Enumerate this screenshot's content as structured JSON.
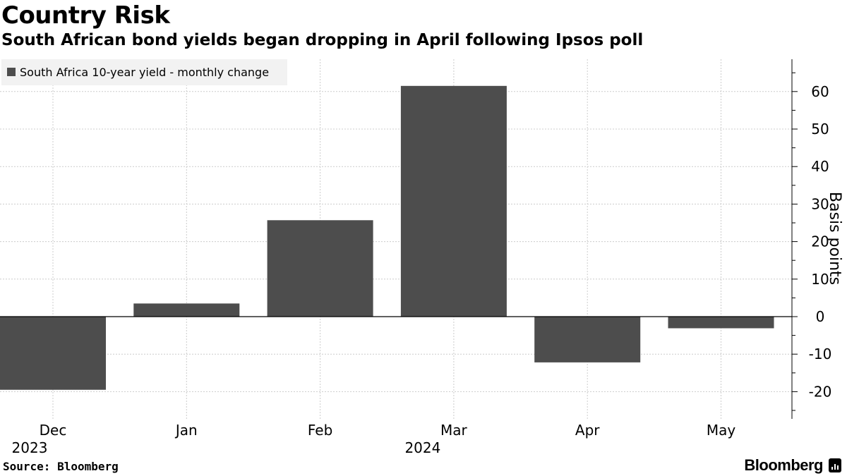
{
  "header": {
    "title": "Country Risk",
    "subtitle": "South African bond yields began dropping in April following Ipsos poll"
  },
  "footer": {
    "source": "Source: Bloomberg",
    "brand": "Bloomberg"
  },
  "colors": {
    "bar": "#4d4d4d",
    "grid": "#cccccc",
    "axis": "#000000"
  },
  "chart_data": {
    "type": "bar",
    "categories": [
      "Dec",
      "Jan",
      "Feb",
      "Mar",
      "Apr",
      "May"
    ],
    "category_years": [
      "2023",
      "",
      "",
      "2024",
      "",
      ""
    ],
    "series": [
      {
        "name": "South Africa 10-year yield - monthly change",
        "values": [
          -19.5,
          3.5,
          25.7,
          61.5,
          -12.2,
          -3.1
        ]
      }
    ],
    "ylabel": "Basis points",
    "ylim": [
      -26,
      69
    ],
    "yticks": [
      -20,
      -10,
      0,
      10,
      20,
      30,
      40,
      50,
      60
    ],
    "ytick_labels": [
      "-20",
      "-10",
      "0",
      "10",
      "20",
      "30",
      "40",
      "50",
      "60"
    ],
    "grid": true,
    "legend_position": "top-left",
    "y_axis_side": "right"
  }
}
